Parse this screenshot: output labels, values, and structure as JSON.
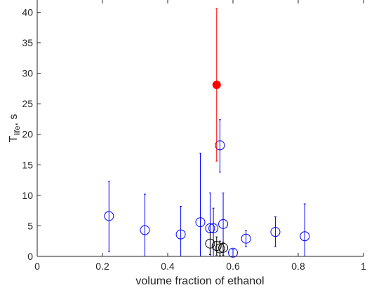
{
  "chart_data": {
    "type": "scatter",
    "xlabel": "volume fraction of ethanol",
    "ylabel_main": "T",
    "ylabel_sub": "life",
    "ylabel_suffix": ", s",
    "xlim": [
      0,
      1
    ],
    "ylim": [
      0,
      42
    ],
    "x_ticks": [
      0,
      0.2,
      0.4,
      0.6,
      0.8,
      1
    ],
    "x_tick_labels": [
      "0",
      "0.2",
      "0.4",
      "0.6",
      "0.8",
      "1"
    ],
    "y_ticks": [
      0,
      5,
      10,
      15,
      20,
      25,
      30,
      35,
      40
    ],
    "y_tick_labels": [
      "0",
      "5",
      "10",
      "15",
      "20",
      "25",
      "30",
      "35",
      "40"
    ],
    "grid": false,
    "colors": {
      "blue": "#0000ff",
      "black": "#000000",
      "red": "#ff0000",
      "axis": "#262626"
    },
    "series": [
      {
        "color": "blue",
        "marker": "open-circle",
        "points": [
          {
            "x": 0.22,
            "y": 6.6,
            "lo": 0.8,
            "hi": 12.3
          },
          {
            "x": 0.33,
            "y": 4.3,
            "lo": 0.0,
            "hi": 10.2
          },
          {
            "x": 0.44,
            "y": 3.6,
            "lo": 0.0,
            "hi": 8.2
          },
          {
            "x": 0.5,
            "y": 5.6,
            "lo": 0.0,
            "hi": 16.9
          },
          {
            "x": 0.53,
            "y": 4.6,
            "lo": 0.0,
            "hi": 10.4
          },
          {
            "x": 0.54,
            "y": 4.6,
            "lo": 0.0,
            "hi": 7.9
          },
          {
            "x": 0.56,
            "y": 18.2,
            "lo": 13.8,
            "hi": 22.4
          },
          {
            "x": 0.57,
            "y": 5.3,
            "lo": 0.0,
            "hi": 10.4
          },
          {
            "x": 0.6,
            "y": 0.6,
            "lo": 0.0,
            "hi": 1.1
          },
          {
            "x": 0.64,
            "y": 2.9,
            "lo": 1.6,
            "hi": 4.2
          },
          {
            "x": 0.73,
            "y": 4.0,
            "lo": 1.6,
            "hi": 6.5
          },
          {
            "x": 0.82,
            "y": 3.3,
            "lo": 0.0,
            "hi": 8.6
          }
        ]
      },
      {
        "color": "black",
        "marker": "open-circle",
        "points": [
          {
            "x": 0.53,
            "y": 2.1,
            "lo": 0.3,
            "hi": 3.9
          },
          {
            "x": 0.55,
            "y": 1.7,
            "lo": 0.2,
            "hi": 3.2
          },
          {
            "x": 0.56,
            "y": 1.3,
            "lo": 0.1,
            "hi": 2.5
          },
          {
            "x": 0.57,
            "y": 1.4,
            "lo": 0.2,
            "hi": 2.3
          }
        ]
      },
      {
        "color": "red",
        "marker": "filled-circle",
        "points": [
          {
            "x": 0.55,
            "y": 28.1,
            "lo": 15.6,
            "hi": 40.6
          }
        ]
      }
    ]
  }
}
